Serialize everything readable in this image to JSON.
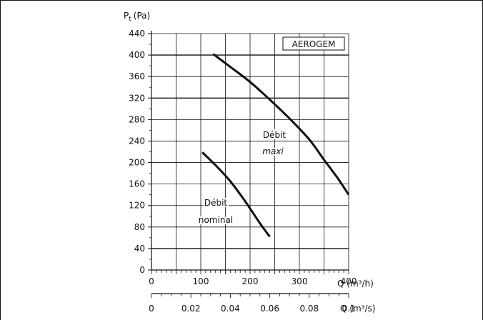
{
  "chart_data": {
    "type": "line",
    "title": "",
    "ylabel": "P",
    "ylabel_sub": "t",
    "ylabel_unit": "(Pa)",
    "xlabel_top": "Q (m³/h)",
    "xlabel_bottom": "Q (m³/s)",
    "ylim": [
      0,
      440
    ],
    "xlim_m3h": [
      0,
      400
    ],
    "xlim_m3s": [
      0,
      0.1
    ],
    "y_ticks": [
      0,
      40,
      80,
      120,
      160,
      200,
      240,
      280,
      320,
      360,
      400,
      440
    ],
    "y_tick_labels": [
      "0",
      "40",
      "80",
      "120",
      "160",
      "200",
      "240",
      "280",
      "320",
      "360",
      "400",
      "440"
    ],
    "x_top_ticks": [
      0,
      100,
      200,
      300,
      400
    ],
    "x_top_tick_labels": [
      "0",
      "100",
      "200",
      "300",
      "400"
    ],
    "x_bottom_ticks": [
      0,
      0.02,
      0.04,
      0.06,
      0.08,
      0.1
    ],
    "x_bottom_tick_labels": [
      "0",
      "0.02",
      "0.04",
      "0.06",
      "0.08",
      "0.1"
    ],
    "grid": true,
    "legend_box": "AEROGEM",
    "series": [
      {
        "label_line1": "Débit",
        "label_line2": "maxi",
        "x": [
          125,
          160,
          200,
          240,
          280,
          320,
          350,
          360,
          380,
          400
        ],
        "y": [
          402,
          378,
          350,
          317,
          282,
          243,
          205,
          193,
          168,
          140
        ]
      },
      {
        "label_line1": "Débit",
        "label_line2": "nominal",
        "x": [
          103,
          130,
          160,
          190,
          220,
          240
        ],
        "y": [
          219,
          195,
          165,
          128,
          87,
          62
        ]
      }
    ]
  }
}
